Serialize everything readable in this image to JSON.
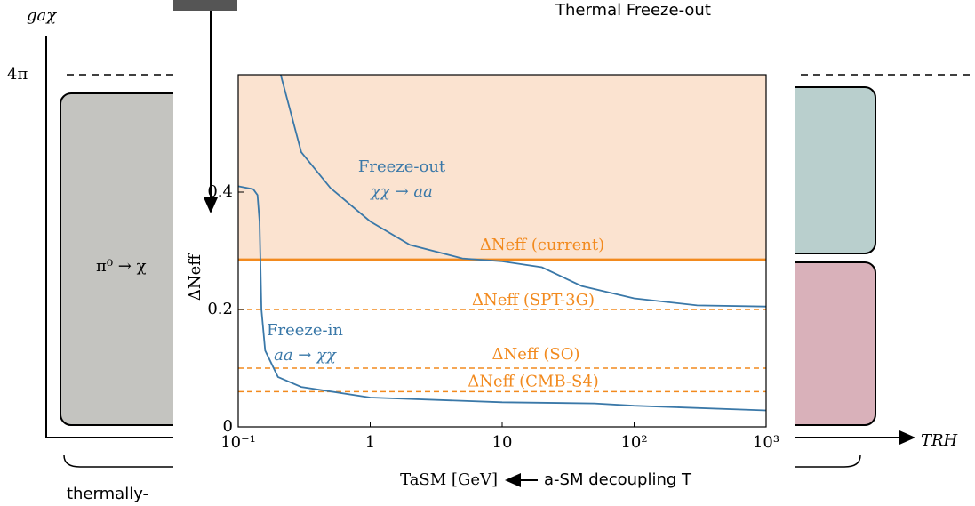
{
  "diagram": {
    "y_axis_label": "gaχ",
    "level_label": "4π",
    "x_axis_label": "TRH",
    "top_label": "Thermal Freeze-out",
    "left_box_label": "π⁰ → χ",
    "bottom_label": "thermally-"
  },
  "chart_data": {
    "type": "line",
    "x_label": "TaSM [GeV]",
    "x_label_note": "a-SM decoupling T",
    "y_label": "ΔNeff",
    "xscale": "log",
    "xlim": [
      0.1,
      1000
    ],
    "ylim": [
      0,
      0.6
    ],
    "xticks": [
      {
        "value": 0.1,
        "label": "10⁻¹"
      },
      1,
      10,
      {
        "value": 100,
        "label": "10²"
      },
      {
        "value": 1000,
        "label": "10³"
      }
    ],
    "yticks": [
      0,
      0.2,
      0.4
    ],
    "series": [
      {
        "name": "Freeze-out",
        "process": "χχ → aa",
        "color": "#3a78a8",
        "x": [
          0.21,
          0.3,
          0.5,
          1,
          2,
          5,
          10,
          20,
          40,
          100,
          300,
          1000
        ],
        "values": [
          0.6,
          0.468,
          0.407,
          0.35,
          0.31,
          0.287,
          0.282,
          0.272,
          0.24,
          0.219,
          0.207,
          0.205
        ]
      },
      {
        "name": "Freeze-in",
        "process": "aa → χχ",
        "color": "#3a78a8",
        "x": [
          0.1,
          0.13,
          0.14,
          0.145,
          0.15,
          0.16,
          0.2,
          0.3,
          1,
          10,
          50,
          100,
          1000
        ],
        "values": [
          0.41,
          0.405,
          0.395,
          0.35,
          0.2,
          0.13,
          0.085,
          0.068,
          0.05,
          0.042,
          0.04,
          0.036,
          0.028
        ]
      }
    ],
    "reference_lines": [
      {
        "name": "ΔNeff (current)",
        "value": 0.285,
        "style": "solid",
        "shade_above": true,
        "color": "#f28a1e"
      },
      {
        "name": "ΔNeff (SPT-3G)",
        "value": 0.2,
        "style": "dashed",
        "color": "#f28a1e"
      },
      {
        "name": "ΔNeff (SO)",
        "value": 0.1,
        "style": "dashed",
        "color": "#f28a1e"
      },
      {
        "name": "ΔNeff (CMB-S4)",
        "value": 0.06,
        "style": "dashed",
        "color": "#f28a1e"
      }
    ]
  }
}
